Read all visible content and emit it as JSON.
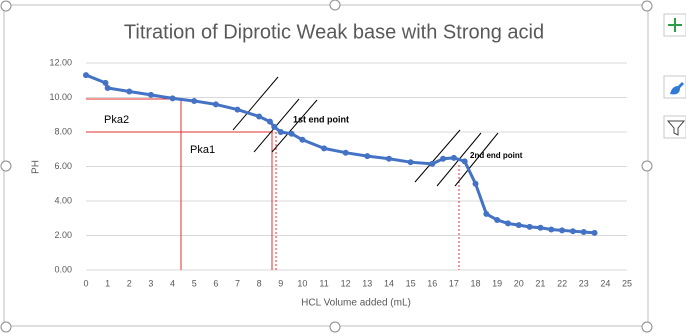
{
  "chart_data": {
    "type": "line",
    "title": "Titration of Diprotic Weak base with Strong acid",
    "x_label": "HCL Volume added (mL)",
    "y_label": "PH",
    "annotations": [
      "Pka2",
      "Pka1",
      "1st end point",
      "2nd end point"
    ],
    "x": [
      0,
      0.9,
      1,
      2,
      3,
      4,
      5,
      6,
      7,
      8,
      8.5,
      8.7,
      9,
      9.5,
      10,
      11,
      12,
      13,
      14,
      15,
      16,
      16.5,
      17,
      17.5,
      18,
      18.5,
      19,
      19.5,
      20,
      20.5,
      21,
      21.5,
      22,
      22.5,
      23,
      23.5
    ],
    "series": [
      {
        "name": "PH",
        "color": "#4472c4",
        "values": [
          11.3,
          10.85,
          10.55,
          10.35,
          10.15,
          9.95,
          9.8,
          9.6,
          9.3,
          8.9,
          8.6,
          8.3,
          8.0,
          7.9,
          7.55,
          7.05,
          6.8,
          6.6,
          6.45,
          6.25,
          6.15,
          6.45,
          6.5,
          6.3,
          5.0,
          3.25,
          2.9,
          2.7,
          2.6,
          2.5,
          2.45,
          2.35,
          2.3,
          2.25,
          2.2,
          2.15
        ]
      }
    ],
    "xlim": [
      0,
      25
    ],
    "ylim": [
      0,
      12
    ],
    "xticks": [
      0,
      1,
      2,
      3,
      4,
      5,
      6,
      7,
      8,
      9,
      10,
      11,
      12,
      13,
      14,
      15,
      16,
      17,
      18,
      19,
      20,
      21,
      22,
      23,
      24,
      25
    ],
    "yticks": [
      {
        "value": 0,
        "label": "0.00"
      },
      {
        "value": 2,
        "label": "2.00"
      },
      {
        "value": 4,
        "label": "4.00"
      },
      {
        "value": 6,
        "label": "6.00"
      },
      {
        "value": 8,
        "label": "8.00"
      },
      {
        "value": 10,
        "label": "10.00"
      },
      {
        "value": 12,
        "label": "12.00"
      }
    ],
    "grid": true
  }
}
